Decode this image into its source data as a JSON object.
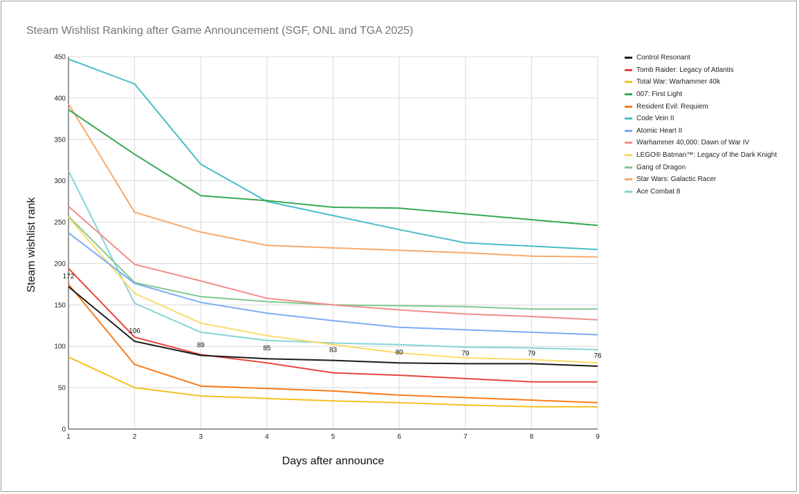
{
  "chart_data": {
    "type": "line",
    "title": "Steam Wishlist Ranking after Game Announcement (SGF, ONL and TGA 2025)",
    "xlabel": "Days after announce",
    "ylabel": "Steam wishlist rank",
    "x": [
      1,
      2,
      3,
      4,
      5,
      6,
      7,
      8,
      9
    ],
    "xlim": [
      1,
      9
    ],
    "ylim": [
      0,
      450
    ],
    "yticks": [
      0,
      50,
      100,
      150,
      200,
      250,
      300,
      350,
      400,
      450
    ],
    "grid": true,
    "legend_position": "right",
    "series": [
      {
        "name": "Control Resonant",
        "color": "#1a1a1a",
        "values": [
          172,
          106,
          89,
          85,
          83,
          80,
          79,
          79,
          76
        ],
        "labels": [
          "172",
          "106",
          "89",
          "85",
          "83",
          "80",
          "79",
          "79",
          "76"
        ]
      },
      {
        "name": "Tomb Raider: Legacy of Atlantis",
        "color": "#e8453c",
        "values": [
          194,
          111,
          90,
          80,
          68,
          65,
          61,
          57,
          57
        ]
      },
      {
        "name": "Total War: Warhammer 40k",
        "color": "#f5bf1d",
        "values": [
          87,
          50,
          40,
          37,
          34,
          32,
          29,
          27,
          27
        ]
      },
      {
        "name": "007: First Light",
        "color": "#34a853",
        "values": [
          386,
          332,
          282,
          276,
          268,
          267,
          260,
          253,
          246
        ]
      },
      {
        "name": "Resident Evil: Requiem",
        "color": "#fa7b17",
        "values": [
          175,
          78,
          52,
          49,
          46,
          41,
          38,
          35,
          32
        ]
      },
      {
        "name": "Code Vein II",
        "color": "#46bdc6",
        "values": [
          447,
          417,
          320,
          275,
          258,
          241,
          225,
          221,
          217
        ]
      },
      {
        "name": "Atomic Heart II",
        "color": "#7baaf7",
        "values": [
          237,
          176,
          153,
          140,
          131,
          123,
          120,
          117,
          114
        ]
      },
      {
        "name": "Warhammer 40,000: Dawn of War IV",
        "color": "#ef8d88",
        "values": [
          269,
          199,
          179,
          158,
          150,
          144,
          139,
          136,
          132
        ]
      },
      {
        "name": "LEGO® Batman™: Legacy of the Dark Knight",
        "color": "#fcd966",
        "values": [
          256,
          164,
          128,
          113,
          102,
          92,
          86,
          84,
          80
        ]
      },
      {
        "name": "Gang of Dragon",
        "color": "#7fc98f",
        "values": [
          257,
          177,
          160,
          154,
          150,
          149,
          148,
          145,
          145
        ]
      },
      {
        "name": "Star Wars: Galactic Racer",
        "color": "#f7a96b",
        "values": [
          393,
          262,
          238,
          222,
          219,
          216,
          213,
          209,
          208
        ]
      },
      {
        "name": "Ace Combat 8",
        "color": "#86d4d8",
        "values": [
          312,
          152,
          117,
          107,
          104,
          102,
          99,
          98,
          96
        ]
      }
    ]
  }
}
